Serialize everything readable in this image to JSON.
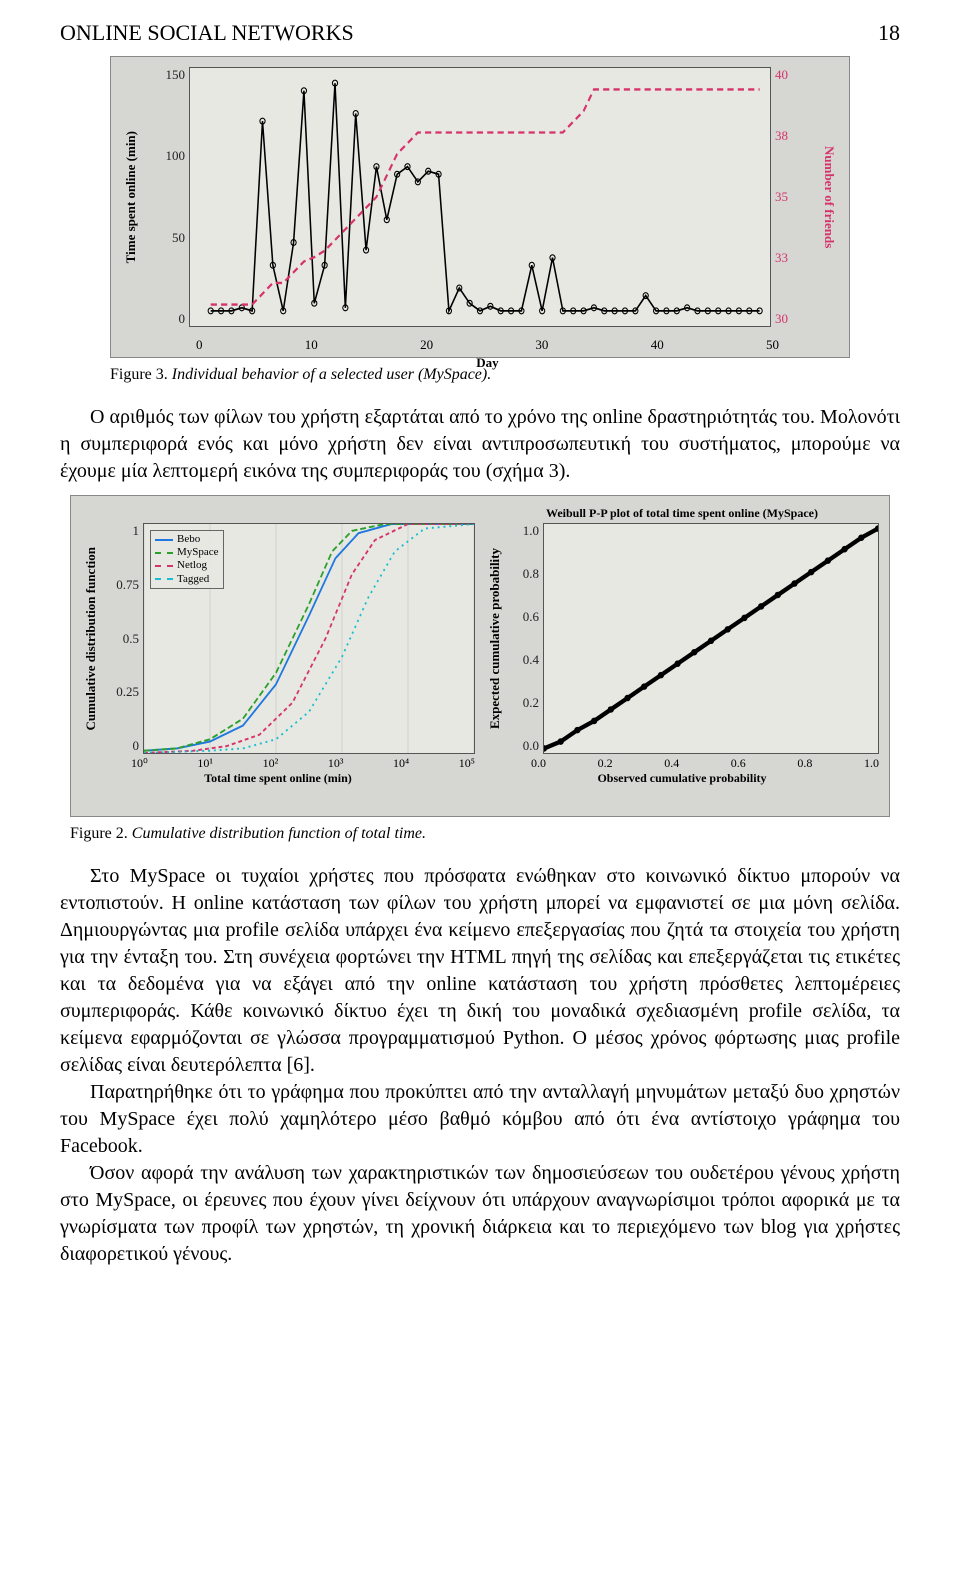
{
  "header": {
    "running_title": "ONLINE SOCIAL NETWORKS",
    "page_number": "18"
  },
  "figure3": {
    "type": "line",
    "plot_bg": "#e7e8e2",
    "panel_bg": "#d6d7d2",
    "y_left_label": "Time spent online (min)",
    "y_left_ticks": [
      "150",
      "100",
      "50",
      "0"
    ],
    "y_left_color": "#000000",
    "y_right_label": "Number of friends",
    "y_right_ticks": [
      "40",
      "38",
      "35",
      "33",
      "30"
    ],
    "y_right_color": "#d6336c",
    "x_label": "Day",
    "x_ticks": [
      "0",
      "10",
      "20",
      "30",
      "40",
      "50"
    ],
    "series": [
      {
        "name": "time_spent",
        "color": "#000000",
        "dash": "none",
        "marker": "circle",
        "y": [
          0,
          0,
          0,
          2,
          0,
          125,
          30,
          0,
          45,
          145,
          5,
          30,
          150,
          2,
          130,
          40,
          95,
          60,
          90,
          95,
          85,
          92,
          90,
          0,
          15,
          5,
          0,
          3,
          0,
          0,
          0,
          30,
          0,
          35,
          0,
          0,
          0,
          2,
          0,
          0,
          0,
          0,
          10,
          0,
          0,
          0,
          2,
          0,
          0,
          0,
          0,
          0,
          0,
          0
        ]
      },
      {
        "name": "friends",
        "color": "#d6336c",
        "dash": "6,4",
        "marker": "none",
        "y_right": [
          30,
          30,
          30,
          30,
          30,
          30.5,
          31,
          31,
          31.5,
          32,
          32.2,
          32.5,
          33,
          33.5,
          34,
          34.5,
          35,
          36,
          37,
          37.5,
          38,
          38,
          38,
          38,
          38,
          38,
          38,
          38,
          38,
          38,
          38,
          38,
          38,
          38,
          38,
          38.5,
          39,
          40,
          40,
          40,
          40,
          40,
          40,
          40,
          40,
          40,
          40,
          40,
          40,
          40,
          40,
          40,
          40,
          40
        ]
      }
    ],
    "xlim": [
      -2,
      54
    ],
    "ylim_left": [
      -10,
      160
    ],
    "ylim_right": [
      29,
      41
    ],
    "caption_num": "Figure 3.",
    "caption_title": "Individual behavior of a selected user (MySpace)."
  },
  "para1": "Ο αριθμός των φίλων του χρήστη εξαρτάται από το χρόνο της online δραστηριότητάς του. Μολονότι η συμπεριφορά ενός και μόνο χρήστη δεν είναι αντιπροσωπευτική του συστήματος, μπορούμε να έχουμε μία λεπτομερή εικόνα της συμπεριφοράς του (σχήμα 3).",
  "figure2": {
    "panel_bg": "#d6d7d2",
    "plot_bg": "#e7e8e2",
    "left": {
      "type": "cdf",
      "y_label": "Cumulative distribution function",
      "x_label": "Total time spent online (min)",
      "y_ticks": [
        "1",
        "0.75",
        "0.5",
        "0.25",
        "0"
      ],
      "x_ticks": [
        "10⁰",
        "10¹",
        "10²",
        "10³",
        "10⁴",
        "10⁵"
      ],
      "x_log": true,
      "legend": [
        {
          "label": "Bebo",
          "color": "#1f78e0",
          "dash": "1,0"
        },
        {
          "label": "MySpace",
          "color": "#2ca02c",
          "dash": "6,3"
        },
        {
          "label": "Netlog",
          "color": "#d6336c",
          "dash": "4,3"
        },
        {
          "label": "Tagged",
          "color": "#17becf",
          "dash": "2,4"
        }
      ],
      "series": {
        "Bebo": [
          [
            0,
            0.01
          ],
          [
            0.1,
            0.02
          ],
          [
            0.2,
            0.05
          ],
          [
            0.3,
            0.12
          ],
          [
            0.4,
            0.3
          ],
          [
            0.5,
            0.6
          ],
          [
            0.58,
            0.85
          ],
          [
            0.65,
            0.96
          ],
          [
            0.75,
            1.0
          ],
          [
            1.0,
            1.0
          ]
        ],
        "MySpace": [
          [
            0,
            0.01
          ],
          [
            0.1,
            0.02
          ],
          [
            0.2,
            0.06
          ],
          [
            0.3,
            0.15
          ],
          [
            0.4,
            0.35
          ],
          [
            0.5,
            0.65
          ],
          [
            0.57,
            0.88
          ],
          [
            0.63,
            0.97
          ],
          [
            0.73,
            1.0
          ],
          [
            1.0,
            1.0
          ]
        ],
        "Netlog": [
          [
            0,
            0.0
          ],
          [
            0.15,
            0.01
          ],
          [
            0.25,
            0.03
          ],
          [
            0.35,
            0.08
          ],
          [
            0.45,
            0.22
          ],
          [
            0.55,
            0.5
          ],
          [
            0.63,
            0.78
          ],
          [
            0.7,
            0.93
          ],
          [
            0.8,
            1.0
          ],
          [
            1.0,
            1.0
          ]
        ],
        "Tagged": [
          [
            0,
            0.0
          ],
          [
            0.2,
            0.01
          ],
          [
            0.3,
            0.02
          ],
          [
            0.4,
            0.06
          ],
          [
            0.5,
            0.18
          ],
          [
            0.6,
            0.42
          ],
          [
            0.68,
            0.68
          ],
          [
            0.76,
            0.88
          ],
          [
            0.85,
            0.98
          ],
          [
            1.0,
            1.0
          ]
        ]
      }
    },
    "right": {
      "type": "pp-plot",
      "title": "Weibull P-P plot of total time spent online (MySpace)",
      "y_label": "Expected cumulative probability",
      "x_label": "Observed cumulative probability",
      "y_ticks": [
        "1.0",
        "0.8",
        "0.6",
        "0.4",
        "0.2",
        "0.0"
      ],
      "x_ticks": [
        "0.0",
        "0.2",
        "0.4",
        "0.6",
        "0.8",
        "1.0"
      ],
      "series_color": "#000000",
      "points": [
        [
          0.0,
          0.02
        ],
        [
          0.05,
          0.05
        ],
        [
          0.1,
          0.1
        ],
        [
          0.15,
          0.14
        ],
        [
          0.2,
          0.19
        ],
        [
          0.25,
          0.24
        ],
        [
          0.3,
          0.29
        ],
        [
          0.35,
          0.34
        ],
        [
          0.4,
          0.39
        ],
        [
          0.45,
          0.44
        ],
        [
          0.5,
          0.49
        ],
        [
          0.55,
          0.54
        ],
        [
          0.6,
          0.59
        ],
        [
          0.65,
          0.64
        ],
        [
          0.7,
          0.69
        ],
        [
          0.75,
          0.74
        ],
        [
          0.8,
          0.79
        ],
        [
          0.85,
          0.84
        ],
        [
          0.9,
          0.89
        ],
        [
          0.95,
          0.94
        ],
        [
          1.0,
          0.98
        ]
      ]
    },
    "caption_num": "Figure 2.",
    "caption_title": "Cumulative distribution function of total time."
  },
  "para2": "Στο MySpace οι τυχαίοι χρήστες που πρόσφατα ενώθηκαν στο κοινωνικό δίκτυο μπορούν να εντοπιστούν. Η online κατάσταση των φίλων του χρήστη μπορεί να εμφανιστεί σε μια μόνη σελίδα. Δημιουργώντας μια profile σελίδα υπάρχει ένα κείμενο επεξεργασίας που ζητά τα στοιχεία του χρήστη για την ένταξη του. Στη συνέχεια φορτώνει την HTML πηγή της σελίδας και επεξεργάζεται τις ετικέτες και τα δεδομένα για να εξάγει από την online κατάσταση του χρήστη πρόσθετες λεπτομέρειες συμπεριφοράς. Κάθε κοινωνικό δίκτυο έχει τη δική του μοναδικά σχεδιασμένη profile σελίδα, τα κείμενα εφαρμόζονται σε γλώσσα προγραμματισμού Python. Ο μέσος χρόνος φόρτωσης μιας profile σελίδας είναι δευτερόλεπτα [6].",
  "para3": "Παρατηρήθηκε ότι το γράφημα που προκύπτει από την ανταλλαγή μηνυμάτων μεταξύ δυο χρηστών του MySpace έχει πολύ χαμηλότερο μέσο βαθμό κόμβου από ότι ένα αντίστοιχο γράφημα του Facebook.",
  "para4": "Όσον αφορά την ανάλυση των χαρακτηριστικών των δημοσιεύσεων του ουδετέρου γένους χρήστη στο MySpace, οι έρευνες που έχουν γίνει δείχνουν ότι υπάρχουν αναγνωρίσιμοι τρόποι αφορικά με τα γνωρίσματα των προφίλ των χρηστών, τη χρονική διάρκεια και το περιεχόμενο των blog για χρήστες διαφορετικού γένους."
}
